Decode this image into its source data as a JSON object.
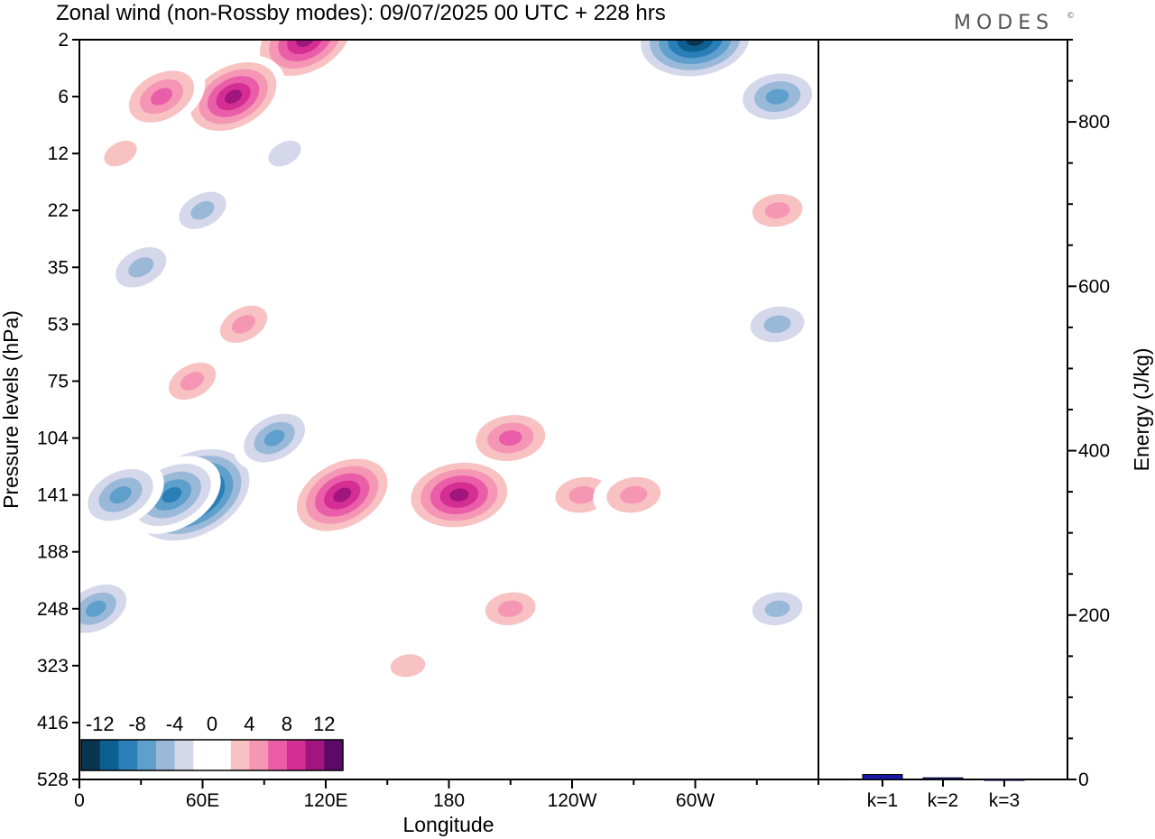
{
  "header": {
    "title": "Zonal wind (non-Rossby modes):  09/07/2025  00 UTC  + 228 hrs",
    "logo_text": "MODES",
    "logo_mark": "©"
  },
  "colors": {
    "palette": [
      "#0a3550",
      "#0d5f8f",
      "#2a7fb7",
      "#5e9fcb",
      "#9ab9d9",
      "#d5d8ea",
      "#ffffff",
      "#ffffff",
      "#f8c2c3",
      "#f597b4",
      "#ea5ea9",
      "#d42e93",
      "#a0167e",
      "#5c0a6a"
    ],
    "bar_fill": "#1a1aa6"
  },
  "chart_data": [
    {
      "type": "heatmap",
      "xlabel": "Longitude",
      "ylabel": "Pressure levels (hPa)",
      "x_ticks": [
        "0",
        "60E",
        "120E",
        "180",
        "120W",
        "60W"
      ],
      "y_ticks": [
        "2",
        "6",
        "12",
        "22",
        "35",
        "53",
        "75",
        "104",
        "141",
        "188",
        "248",
        "323",
        "416",
        "528"
      ],
      "colorbar": {
        "tick_labels": [
          "-12",
          "-8",
          "-4",
          "0",
          "4",
          "8",
          "12"
        ],
        "levels": [
          -14,
          -12,
          -10,
          -8,
          -6,
          -4,
          -2,
          0,
          2,
          4,
          6,
          8,
          10,
          12,
          14
        ]
      },
      "features": [
        {
          "lon": 55,
          "level": 141,
          "value": -16
        },
        {
          "lon": 45,
          "level": 141,
          "value": -10
        },
        {
          "lon": 20,
          "level": 141,
          "value": -8
        },
        {
          "lon": 95,
          "level": 104,
          "value": -7
        },
        {
          "lon": 8,
          "level": 248,
          "value": -7
        },
        {
          "lon": 128,
          "level": 141,
          "value": 12
        },
        {
          "lon": 185,
          "level": 141,
          "value": 12
        },
        {
          "lon": 210,
          "level": 104,
          "value": 8
        },
        {
          "lon": 245,
          "level": 141,
          "value": 6
        },
        {
          "lon": 270,
          "level": 141,
          "value": 6
        },
        {
          "lon": 210,
          "level": 248,
          "value": 5
        },
        {
          "lon": 160,
          "level": 323,
          "value": 4
        },
        {
          "lon": 300,
          "level": 2,
          "value": -14
        },
        {
          "lon": 340,
          "level": 6,
          "value": -8
        },
        {
          "lon": 340,
          "level": 53,
          "value": -6
        },
        {
          "lon": 110,
          "level": 2,
          "value": 12
        },
        {
          "lon": 75,
          "level": 6,
          "value": 11
        },
        {
          "lon": 40,
          "level": 6,
          "value": 8
        },
        {
          "lon": 20,
          "level": 12,
          "value": 4
        },
        {
          "lon": 340,
          "level": 22,
          "value": 5
        },
        {
          "lon": 55,
          "level": 75,
          "value": 5
        },
        {
          "lon": 80,
          "level": 53,
          "value": 5
        },
        {
          "lon": 60,
          "level": 22,
          "value": -5
        },
        {
          "lon": 30,
          "level": 35,
          "value": -6
        },
        {
          "lon": 100,
          "level": 12,
          "value": -4
        },
        {
          "lon": 340,
          "level": 248,
          "value": -5
        }
      ]
    },
    {
      "type": "bar",
      "categories": [
        "k=1",
        "k=2",
        "k=3"
      ],
      "values": [
        6,
        2,
        0.5
      ],
      "ylabel": "Energy (J/kg)",
      "ylim": [
        0,
        900
      ],
      "y_ticks": [
        "0",
        "200",
        "400",
        "600",
        "800"
      ]
    }
  ]
}
